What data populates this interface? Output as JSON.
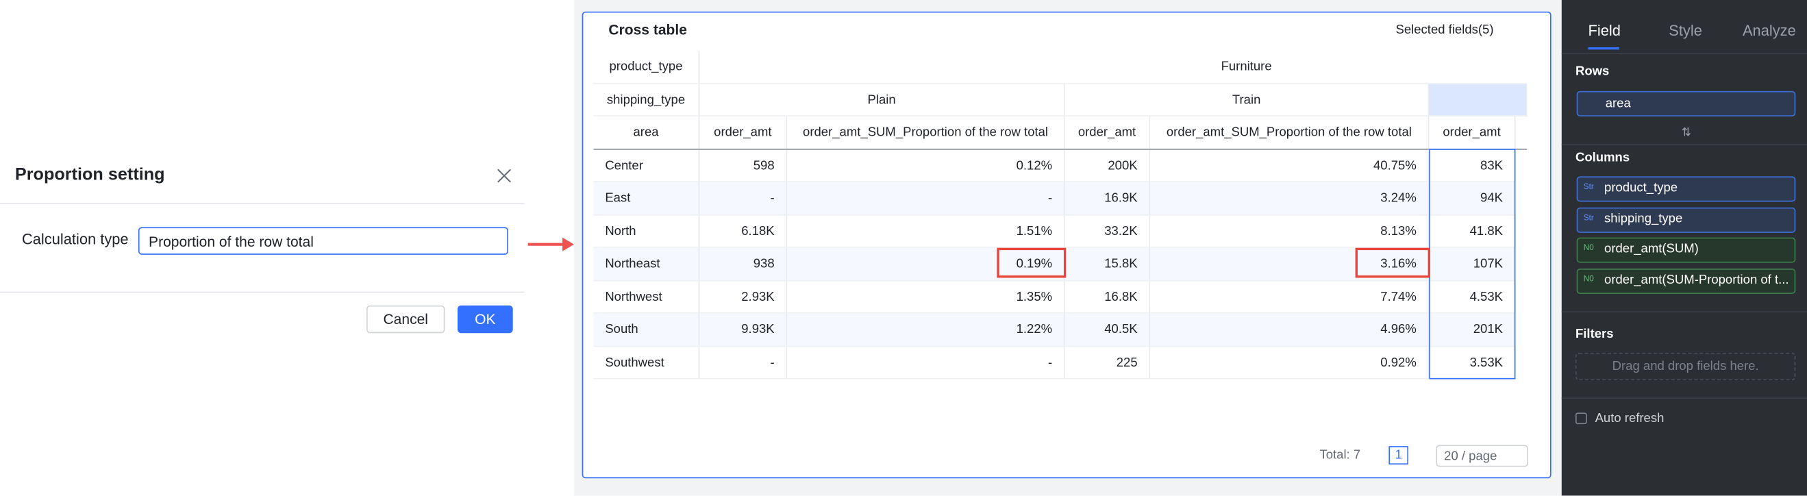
{
  "dialog": {
    "title": "Proportion setting",
    "field_label": "Calculation type",
    "field_value": "Proportion of the row total",
    "cancel": "Cancel",
    "ok": "OK"
  },
  "card": {
    "title": "Cross table",
    "selected_fields": "Selected fields(5)"
  },
  "table": {
    "header_row_1": [
      "product_type",
      "Furniture"
    ],
    "header_row_2": [
      "shipping_type",
      "Plain",
      "Train"
    ],
    "header_row_3": [
      "area",
      "order_amt",
      "order_amt_SUM_Proportion of the row total",
      "order_amt",
      "order_amt_SUM_Proportion of the row total",
      "order_amt"
    ],
    "rows": [
      [
        "Center",
        "598",
        "0.12%",
        "200K",
        "40.75%",
        "83K"
      ],
      [
        "East",
        "-",
        "-",
        "16.9K",
        "3.24%",
        "94K"
      ],
      [
        "North",
        "6.18K",
        "1.51%",
        "33.2K",
        "8.13%",
        "41.8K"
      ],
      [
        "Northeast",
        "938",
        "0.19%",
        "15.8K",
        "3.16%",
        "107K"
      ],
      [
        "Northwest",
        "2.93K",
        "1.35%",
        "16.8K",
        "7.74%",
        "4.53K"
      ],
      [
        "South",
        "9.93K",
        "1.22%",
        "40.5K",
        "4.96%",
        "201K"
      ],
      [
        "Southwest",
        "-",
        "-",
        "225",
        "0.92%",
        "3.53K"
      ]
    ]
  },
  "pagination": {
    "total": "Total: 7",
    "page": "1",
    "page_size": "20 / page"
  },
  "sidebar": {
    "tabs": [
      "Field",
      "Style",
      "Analyze"
    ],
    "rows_label": "Rows",
    "row_fields": [
      "area"
    ],
    "columns_label": "Columns",
    "column_fields": [
      {
        "tag": "Str",
        "name": "product_type"
      },
      {
        "tag": "Str",
        "name": "shipping_type"
      },
      {
        "tag": "N0",
        "name": "order_amt(SUM)"
      },
      {
        "tag": "N0",
        "name": "order_amt(SUM-Proportion of t..."
      }
    ],
    "filters_label": "Filters",
    "filters_placeholder": "Drag and drop fields here.",
    "auto_refresh": "Auto refresh"
  }
}
